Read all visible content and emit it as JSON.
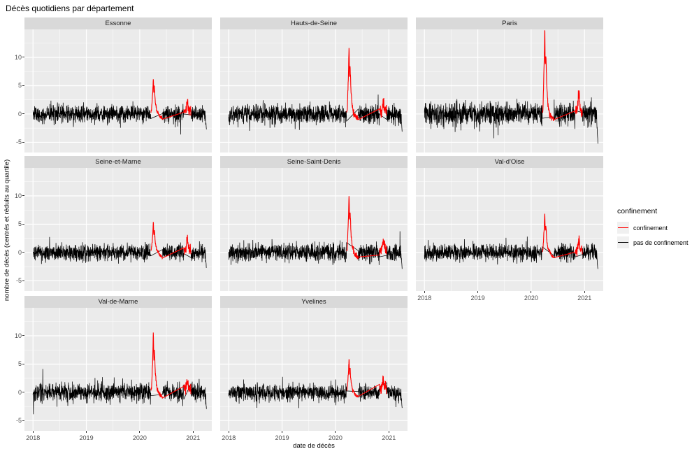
{
  "chart_data": {
    "type": "line",
    "title": "Décès quotidiens par département",
    "xlabel": "date de décès",
    "ylabel": "nombre de décès (centrés et réduits au quartile)",
    "x_ticks": [
      "2018",
      "2019",
      "2020",
      "2021"
    ],
    "y_ticks": [
      -5,
      0,
      5,
      10
    ],
    "x_domain": [
      2017.84,
      2021.35
    ],
    "y_domain": [
      -6.8,
      14.94
    ],
    "x_data_range": [
      2018.0,
      2021.25
    ],
    "grid": "on",
    "facet_layout": "3 columns x 3 rows, 8 panels, shared fixed scales",
    "legend": {
      "title": "confinement",
      "position": "right",
      "items": [
        {
          "label": "confinement",
          "color": "#FF0000"
        },
        {
          "label": "pas de confinement",
          "color": "#000000"
        }
      ]
    },
    "confinement_periods_decimal_years": [
      [
        2020.21,
        2020.425
      ],
      [
        2020.826,
        2020.96
      ]
    ],
    "series_description": "Daily standardized death counts per department; black noisy baseline around 0 (range ~±2), red segments during lockdowns with a large spike peaking around April 2020 and a smaller noisy bump around Nov 2020; all panels end with a downward tail in early 2021.",
    "facets": [
      {
        "name": "Essonne",
        "wave1_peak": 6.7,
        "wave2_peak": 2.0,
        "baseline_mean": 0,
        "noise_sd": 0.72,
        "end_dip": -2.8,
        "seed": 11
      },
      {
        "name": "Hauts-de-Seine",
        "wave1_peak": 12.2,
        "wave2_peak": 1.8,
        "baseline_mean": 0,
        "noise_sd": 0.8,
        "end_dip": -3.2,
        "seed": 22
      },
      {
        "name": "Paris",
        "wave1_peak": 15.5,
        "wave2_peak": 3.5,
        "baseline_mean": 0,
        "noise_sd": 1.0,
        "end_dip": -5.4,
        "seed": 33
      },
      {
        "name": "Seine-et-Marne",
        "wave1_peak": 5.5,
        "wave2_peak": 2.2,
        "baseline_mean": 0,
        "noise_sd": 0.7,
        "end_dip": -2.8,
        "seed": 44
      },
      {
        "name": "Seine-Saint-Denis",
        "wave1_peak": 10.4,
        "wave2_peak": 1.6,
        "baseline_mean": 0,
        "noise_sd": 0.75,
        "end_dip": -3.0,
        "seed": 55
      },
      {
        "name": "Val-d'Oise",
        "wave1_peak": 7.1,
        "wave2_peak": 2.2,
        "baseline_mean": 0,
        "noise_sd": 0.7,
        "end_dip": -3.0,
        "seed": 66
      },
      {
        "name": "Val-de-Marne",
        "wave1_peak": 10.9,
        "wave2_peak": 2.0,
        "baseline_mean": 0,
        "noise_sd": 0.78,
        "end_dip": -3.0,
        "seed": 77
      },
      {
        "name": "Yvelines",
        "wave1_peak": 6.0,
        "wave2_peak": 2.2,
        "baseline_mean": 0,
        "noise_sd": 0.72,
        "end_dip": -2.8,
        "seed": 88
      }
    ],
    "colors": {
      "panel_bg": "#EBEBEB",
      "strip_bg": "#D9D9D9",
      "grid_major": "#FFFFFF",
      "grid_minor": "#FFFFFF",
      "axis_text": "#4D4D4D",
      "confinement": "#FF0000",
      "no_confinement": "#000000",
      "legend_key_bg": "#F0F0F0"
    }
  }
}
